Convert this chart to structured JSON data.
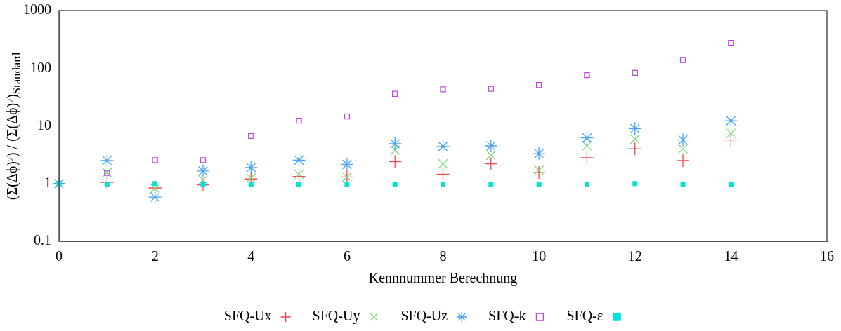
{
  "chart_data": {
    "type": "scatter",
    "xlabel": "Kennnummer Berechnung",
    "ylabel": "(Σ(Δϕ)²) / (Σ(Δϕ)²)$_{Standard}$",
    "x": [
      0,
      1,
      2,
      3,
      4,
      5,
      6,
      7,
      8,
      9,
      10,
      11,
      12,
      13,
      14
    ],
    "xlim": [
      0,
      16
    ],
    "xticks": [
      0,
      2,
      4,
      6,
      8,
      10,
      12,
      14,
      16
    ],
    "ylim": [
      0.1,
      1000
    ],
    "yticks": [
      0.1,
      1,
      10,
      100,
      1000
    ],
    "log": "y",
    "grid": false,
    "legend": "bottom",
    "series": [
      {
        "name": "SFQ-Ux",
        "color": "#f04848",
        "marker": "cross",
        "values": [
          null,
          1.05,
          0.84,
          0.95,
          1.2,
          1.33,
          1.3,
          2.4,
          1.45,
          2.2,
          1.55,
          2.8,
          4.0,
          2.5,
          5.7
        ]
      },
      {
        "name": "SFQ-Uy",
        "color": "#78d878",
        "marker": "x",
        "values": [
          null,
          1.55,
          0.82,
          1.15,
          1.25,
          1.45,
          1.3,
          3.8,
          2.2,
          3.1,
          1.7,
          4.5,
          5.9,
          4.0,
          7.4
        ]
      },
      {
        "name": "SFQ-Uz",
        "color": "#4aa3f5",
        "values": [
          1,
          2.5,
          0.58,
          1.65,
          1.9,
          2.55,
          2.15,
          4.9,
          4.4,
          4.5,
          3.3,
          6.2,
          9.0,
          5.7,
          12.3
        ]
      },
      {
        "name": "SFQ-k",
        "color": "#c040e8",
        "marker": "square",
        "values": [
          null,
          1.53,
          2.55,
          2.55,
          6.7,
          12.3,
          14.6,
          36,
          43,
          44,
          51,
          76,
          83,
          139,
          275
        ]
      },
      {
        "name": "SFQ-ε",
        "color": "#00e0e0",
        "marker": "square-filled",
        "values": [
          1,
          0.97,
          1.0,
          0.97,
          0.97,
          0.97,
          0.97,
          0.98,
          0.97,
          0.97,
          0.98,
          0.98,
          1.0,
          0.97,
          0.97
        ]
      }
    ]
  }
}
